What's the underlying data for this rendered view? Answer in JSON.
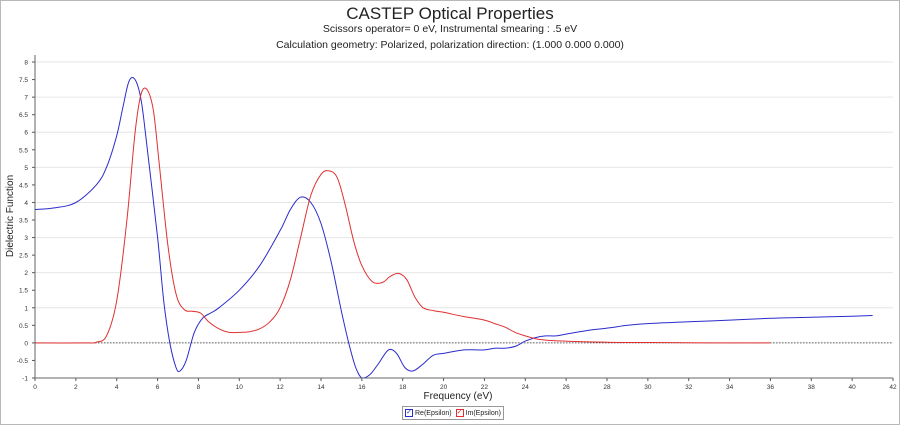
{
  "chart_data": {
    "type": "line",
    "title": "CASTEP Optical Properties",
    "subtitle1": "Scissors operator= 0 eV, Instrumental smearing : .5 eV",
    "subtitle2": "Calculation geometry: Polarized, polarization direction: (1.000 0.000 0.000)",
    "xlabel": "Frequency (eV)",
    "ylabel": "Dielectric Function",
    "xlim": [
      0,
      42
    ],
    "ylim": [
      -1,
      8.2
    ],
    "xticks": [
      "0",
      "2",
      "4",
      "6",
      "8",
      "10",
      "12",
      "14",
      "16",
      "18",
      "20",
      "22",
      "24",
      "26",
      "28",
      "30",
      "32",
      "34",
      "36",
      "38",
      "40",
      "42"
    ],
    "yticks": [
      "-1",
      "-0.5",
      "0",
      "0.5",
      "1",
      "1.5",
      "2",
      "2.5",
      "3",
      "3.5",
      "4",
      "4.5",
      "5",
      "5.5",
      "6",
      "6.5",
      "7",
      "7.5",
      "8"
    ],
    "grid": true,
    "legend_position": "bottom-center",
    "series": [
      {
        "name": "Re(Epsilon)",
        "color": "#2b2bcc",
        "x": [
          0,
          1,
          2,
          3,
          3.5,
          4,
          4.3,
          4.6,
          4.9,
          5.2,
          5.5,
          6,
          6.3,
          6.6,
          6.9,
          7.1,
          7.4,
          7.8,
          8.2,
          8.6,
          9,
          10,
          11,
          12,
          12.5,
          13,
          13.5,
          14,
          14.5,
          15,
          15.4,
          15.7,
          16,
          16.4,
          16.8,
          17.3,
          17.7,
          18.1,
          18.5,
          19,
          19.5,
          20,
          21,
          22,
          22.5,
          23,
          23.5,
          24,
          24.5,
          25,
          25.5,
          26,
          27,
          28,
          29,
          30,
          32,
          34,
          36,
          38,
          40,
          41
        ],
        "y": [
          3.8,
          3.85,
          4.0,
          4.5,
          5.0,
          5.9,
          6.7,
          7.45,
          7.5,
          6.9,
          5.5,
          3.0,
          1.2,
          0.0,
          -0.7,
          -0.8,
          -0.5,
          0.3,
          0.7,
          0.85,
          1.0,
          1.5,
          2.2,
          3.2,
          3.8,
          4.15,
          4.0,
          3.4,
          2.3,
          0.9,
          -0.1,
          -0.7,
          -1.0,
          -0.9,
          -0.6,
          -0.2,
          -0.3,
          -0.7,
          -0.8,
          -0.6,
          -0.35,
          -0.3,
          -0.2,
          -0.2,
          -0.15,
          -0.15,
          -0.1,
          0.05,
          0.15,
          0.2,
          0.2,
          0.25,
          0.35,
          0.42,
          0.5,
          0.55,
          0.6,
          0.65,
          0.7,
          0.73,
          0.76,
          0.78
        ]
      },
      {
        "name": "Im(Epsilon)",
        "color": "#e03030",
        "x": [
          0,
          2.5,
          3,
          3.5,
          4,
          4.5,
          4.9,
          5.2,
          5.5,
          5.8,
          6.1,
          6.5,
          6.9,
          7.3,
          7.7,
          8.1,
          8.5,
          9,
          9.5,
          10,
          10.5,
          11,
          11.5,
          12,
          12.5,
          13,
          13.5,
          14,
          14.4,
          14.8,
          15.2,
          15.6,
          16,
          16.5,
          17,
          17.4,
          17.8,
          18.2,
          18.6,
          19,
          19.5,
          20,
          21,
          22,
          22.5,
          23,
          23.5,
          24,
          24.5,
          25,
          25.5,
          26,
          26.5,
          27,
          28,
          29,
          30,
          32,
          34,
          36
        ],
        "y": [
          0,
          0,
          0.02,
          0.2,
          1.2,
          3.5,
          6.0,
          7.1,
          7.2,
          6.6,
          5.0,
          2.8,
          1.4,
          0.95,
          0.9,
          0.85,
          0.6,
          0.4,
          0.3,
          0.3,
          0.32,
          0.4,
          0.6,
          1.0,
          1.8,
          3.0,
          4.2,
          4.8,
          4.9,
          4.7,
          3.9,
          2.9,
          2.2,
          1.75,
          1.72,
          1.9,
          1.98,
          1.8,
          1.3,
          1.0,
          0.92,
          0.87,
          0.75,
          0.65,
          0.55,
          0.45,
          0.3,
          0.2,
          0.12,
          0.08,
          0.06,
          0.05,
          0.04,
          0.03,
          0.02,
          0.01,
          0.01,
          0.005,
          0.0,
          0.0
        ]
      }
    ]
  }
}
